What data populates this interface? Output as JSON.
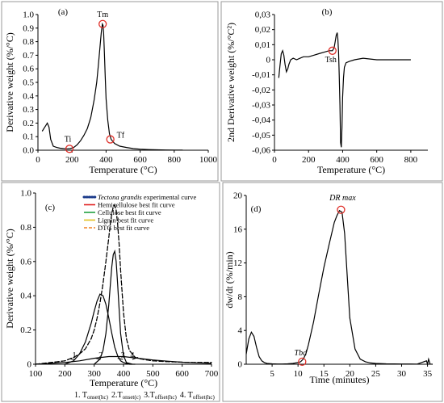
{
  "chart_data": [
    {
      "id": "a",
      "panel_label": "(a)",
      "type": "line",
      "xlabel": "Temperature (°C)",
      "ylabel": "Derivative weight (%/°C)",
      "xlim": [
        0,
        1000
      ],
      "ylim": [
        0,
        1.0
      ],
      "xticks": [
        0,
        200,
        400,
        600,
        800,
        1000
      ],
      "yticks": [
        0,
        0.1,
        0.2,
        0.3,
        0.4,
        0.5,
        0.6,
        0.7,
        0.8,
        0.9,
        1
      ],
      "ytick_labels": [
        "0.0",
        "0.1",
        "0.2",
        "0.3",
        "0.4",
        "0.5",
        "0.6",
        "0.7",
        "0.8",
        "0.9",
        "1.0"
      ],
      "grid": false,
      "series": [
        {
          "x": [
            25,
            35,
            45,
            55,
            65,
            75,
            90,
            110,
            130,
            150,
            170,
            190,
            210,
            230,
            250,
            270,
            290,
            310,
            330,
            345,
            355,
            365,
            372,
            378,
            382,
            386,
            390,
            395,
            400,
            410,
            420,
            430,
            450,
            480,
            520,
            560,
            600,
            650,
            700,
            750,
            800,
            850
          ],
          "y": [
            0.14,
            0.16,
            0.18,
            0.2,
            0.17,
            0.08,
            0.03,
            0.02,
            0.015,
            0.012,
            0.01,
            0.012,
            0.02,
            0.04,
            0.07,
            0.11,
            0.16,
            0.24,
            0.37,
            0.5,
            0.63,
            0.77,
            0.87,
            0.93,
            0.92,
            0.86,
            0.72,
            0.55,
            0.38,
            0.22,
            0.12,
            0.08,
            0.05,
            0.03,
            0.02,
            0.012,
            0.008,
            0.005,
            0.003,
            0.002,
            0.001,
            0.001
          ]
        }
      ],
      "annotations": [
        {
          "text": "Tm",
          "x": 380,
          "y": 0.93,
          "marker": true
        },
        {
          "text": "Ti",
          "x": 185,
          "y": 0.01,
          "marker": true
        },
        {
          "text": "Tf",
          "x": 425,
          "y": 0.08,
          "marker": true
        }
      ]
    },
    {
      "id": "b",
      "panel_label": "(b)",
      "type": "line",
      "xlabel": "Temperature (°C)",
      "ylabel": "2nd Derivative weight (%/°C²)",
      "xlim": [
        0,
        900
      ],
      "ylim": [
        -0.06,
        0.03
      ],
      "xticks": [
        0,
        200,
        400,
        600,
        800
      ],
      "yticks": [
        0.03,
        0.02,
        0.01,
        0,
        -0.01,
        -0.02,
        -0.03,
        -0.04,
        -0.05,
        -0.06
      ],
      "ytick_labels": [
        "0,03",
        "0,02",
        "0,01",
        "0",
        "-0,01",
        "-0,02",
        "-0,03",
        "-0,04",
        "-0,05",
        "-0,06"
      ],
      "grid": false,
      "series": [
        {
          "x": [
            25,
            32,
            40,
            48,
            55,
            62,
            70,
            78,
            85,
            95,
            110,
            130,
            150,
            170,
            200,
            230,
            260,
            290,
            320,
            340,
            350,
            356,
            362,
            368,
            372,
            376,
            380,
            384,
            388,
            392,
            396,
            400,
            405,
            410,
            420,
            440,
            470,
            520,
            600,
            700,
            800
          ],
          "y": [
            -0.012,
            -0.004,
            0.004,
            0.006,
            0.003,
            -0.003,
            -0.008,
            -0.006,
            -0.003,
            0.0,
            0.001,
            0.0,
            0.001,
            0.002,
            0.002,
            0.003,
            0.004,
            0.005,
            0.006,
            0.006,
            0.008,
            0.012,
            0.016,
            0.018,
            0.014,
            0.005,
            -0.01,
            -0.03,
            -0.055,
            -0.058,
            -0.045,
            -0.025,
            -0.012,
            -0.005,
            -0.002,
            -0.001,
            0.0,
            0.001,
            0.0,
            0.0,
            0.0
          ]
        }
      ],
      "annotations": [
        {
          "text": "Tsh",
          "x": 340,
          "y": 0.006,
          "marker": true
        }
      ]
    },
    {
      "id": "c",
      "panel_label": "(c)",
      "type": "line",
      "xlabel": "Temperature (°C)",
      "ylabel": "Derivative weight (%/°C)",
      "xlim": [
        100,
        700
      ],
      "ylim": [
        0,
        1.0
      ],
      "xticks": [
        100,
        200,
        300,
        400,
        500,
        600,
        700
      ],
      "yticks": [
        0,
        0.2,
        0.4,
        0.6,
        0.8,
        1.0
      ],
      "ytick_labels": [
        "0",
        "0.2",
        "0.4",
        "0.6",
        "0.8",
        "1.0"
      ],
      "grid": false,
      "legend_position": "top-right",
      "series": [
        {
          "name": "Tectona grandis experimental curve",
          "color": "#1a3a8a",
          "style": "dotted",
          "x": [
            100,
            150,
            200,
            230,
            250,
            270,
            290,
            300,
            310,
            320,
            330,
            340,
            350,
            355,
            360,
            365,
            370,
            375,
            380,
            385,
            390,
            400,
            410,
            420,
            440,
            460,
            500,
            550,
            600,
            650,
            700
          ],
          "y": [
            0.0,
            0.01,
            0.02,
            0.04,
            0.06,
            0.09,
            0.15,
            0.2,
            0.27,
            0.36,
            0.47,
            0.6,
            0.74,
            0.82,
            0.88,
            0.92,
            0.93,
            0.9,
            0.82,
            0.7,
            0.55,
            0.3,
            0.15,
            0.08,
            0.04,
            0.03,
            0.02,
            0.015,
            0.012,
            0.01,
            0.01
          ]
        },
        {
          "name": "Hemicellulose best fit curve",
          "color": "#e02020",
          "style": "solid",
          "x": [
            200,
            230,
            250,
            270,
            290,
            300,
            310,
            320,
            330,
            340,
            350,
            360,
            370,
            380,
            390,
            400,
            420,
            440
          ],
          "y": [
            0.0,
            0.02,
            0.06,
            0.13,
            0.24,
            0.31,
            0.37,
            0.41,
            0.4,
            0.35,
            0.27,
            0.18,
            0.1,
            0.05,
            0.02,
            0.01,
            0.0,
            0.0
          ]
        },
        {
          "name": "Cellulose best fit curve",
          "color": "#20a040",
          "style": "solid",
          "x": [
            300,
            320,
            330,
            340,
            350,
            355,
            360,
            365,
            370,
            375,
            380,
            385,
            390,
            400,
            410,
            430
          ],
          "y": [
            0.0,
            0.03,
            0.08,
            0.18,
            0.35,
            0.46,
            0.57,
            0.64,
            0.66,
            0.6,
            0.47,
            0.32,
            0.18,
            0.05,
            0.01,
            0.0
          ]
        },
        {
          "name": "Lignin best fit curve",
          "color": "#e0c020",
          "style": "solid",
          "x": [
            100,
            200,
            250,
            300,
            350,
            400,
            450,
            500,
            550,
            600,
            650,
            700
          ],
          "y": [
            0.0,
            0.01,
            0.02,
            0.035,
            0.045,
            0.045,
            0.035,
            0.025,
            0.018,
            0.012,
            0.008,
            0.005
          ]
        },
        {
          "name": "DTG best fit curve",
          "color": "#f08020",
          "style": "dashed",
          "x": [
            100,
            150,
            200,
            230,
            250,
            270,
            290,
            300,
            310,
            320,
            330,
            340,
            350,
            355,
            360,
            365,
            370,
            375,
            380,
            385,
            390,
            400,
            410,
            420,
            440,
            460,
            500,
            550,
            600,
            650,
            700
          ],
          "y": [
            0.0,
            0.01,
            0.02,
            0.04,
            0.06,
            0.09,
            0.15,
            0.2,
            0.27,
            0.36,
            0.47,
            0.6,
            0.74,
            0.82,
            0.88,
            0.92,
            0.93,
            0.9,
            0.82,
            0.7,
            0.55,
            0.3,
            0.15,
            0.08,
            0.04,
            0.03,
            0.02,
            0.015,
            0.012,
            0.01,
            0.01
          ]
        }
      ],
      "annotations": [
        {
          "text": "1",
          "x": 232,
          "y": 0.0
        },
        {
          "text": "2",
          "x": 322,
          "y": 0.0
        },
        {
          "text": "3",
          "x": 398,
          "y": 0.0
        },
        {
          "text": "4",
          "x": 430,
          "y": 0.0
        }
      ],
      "footnote": [
        "1. T",
        "onset(hc)",
        "2.T",
        "onset(c)",
        "3.T",
        "offset(hc)",
        "4. T",
        "offset(hc)"
      ]
    },
    {
      "id": "d",
      "panel_label": "(d)",
      "type": "line",
      "xlabel": "Time (minutes)",
      "ylabel": "dw/dt (%/min)",
      "xlim": [
        0,
        36
      ],
      "ylim": [
        0,
        20
      ],
      "xticks": [
        5,
        10,
        15,
        20,
        25,
        30,
        35
      ],
      "yticks": [
        0,
        4,
        8,
        12,
        16,
        20
      ],
      "ytick_labels": [
        "0",
        "4",
        "8",
        "12",
        "16",
        "20"
      ],
      "grid": false,
      "series": [
        {
          "x": [
            0,
            0.5,
            1,
            1.5,
            2,
            2.5,
            3,
            3.5,
            4,
            5,
            6,
            7,
            8,
            9,
            10,
            10.5,
            11,
            11.5,
            12,
            13,
            14,
            15,
            16,
            16.5,
            17,
            17.5,
            18,
            18.5,
            19,
            19.5,
            20,
            21,
            22,
            23,
            24,
            25,
            27,
            30,
            33,
            34.8,
            35,
            35.2,
            35.5,
            36
          ],
          "y": [
            1.2,
            3.0,
            3.8,
            3.3,
            2.0,
            0.9,
            0.4,
            0.2,
            0.1,
            0.05,
            0.03,
            0.03,
            0.05,
            0.1,
            0.2,
            0.3,
            0.6,
            1.2,
            2.3,
            5.0,
            8.3,
            11.5,
            14.2,
            15.5,
            16.8,
            17.6,
            18.2,
            18.0,
            15.5,
            10.5,
            5.5,
            1.8,
            0.6,
            0.3,
            0.15,
            0.1,
            0.05,
            0.03,
            0.02,
            0.4,
            0.02,
            0.6,
            0.02,
            0.0
          ]
        }
      ],
      "annotations": [
        {
          "text": "DR max",
          "x": 18.3,
          "y": 18.3,
          "marker": true
        },
        {
          "text": "Tbd",
          "x": 10.8,
          "y": 0.3,
          "marker": true
        }
      ]
    }
  ]
}
